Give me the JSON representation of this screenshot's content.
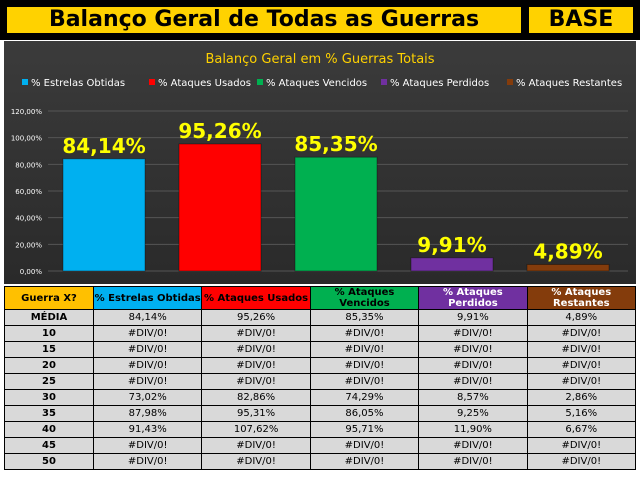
{
  "header": {
    "title": "Balanço Geral de Todas as Guerras",
    "badge": "BASE"
  },
  "colors": {
    "estrelas": "#00b0f0",
    "usados": "#ff0000",
    "vencidos": "#00b050",
    "perdidos": "#7030a0",
    "restantes": "#843c0c",
    "label": "#ffff00"
  },
  "chart_data": {
    "type": "bar",
    "title": "Balanço Geral em % Guerras Totais",
    "legend_position": "top",
    "categories": [
      "% Estrelas Obtidas",
      "% Ataques Usados",
      "% Ataques Vencidos",
      "% Ataques Perdidos",
      "% Ataques Restantes"
    ],
    "values": [
      84.14,
      95.26,
      85.35,
      9.91,
      4.89
    ],
    "value_labels": [
      "84,14%",
      "95,26%",
      "85,35%",
      "9,91%",
      "4,89%"
    ],
    "yticks": [
      "0,00%",
      "20,00%",
      "40,00%",
      "60,00%",
      "80,00%",
      "100,00%",
      "120,00%"
    ],
    "ylim": [
      0,
      120
    ],
    "grid": true
  },
  "table": {
    "headers": [
      "Guerra X?",
      "% Estrelas Obtidas",
      "% Ataques Usados",
      "% Ataques Vencidos",
      "% Ataques Perdidos",
      "% Ataques Restantes"
    ],
    "rows": [
      [
        "MÉDIA",
        "84,14%",
        "95,26%",
        "85,35%",
        "9,91%",
        "4,89%"
      ],
      [
        "10",
        "#DIV/0!",
        "#DIV/0!",
        "#DIV/0!",
        "#DIV/0!",
        "#DIV/0!"
      ],
      [
        "15",
        "#DIV/0!",
        "#DIV/0!",
        "#DIV/0!",
        "#DIV/0!",
        "#DIV/0!"
      ],
      [
        "20",
        "#DIV/0!",
        "#DIV/0!",
        "#DIV/0!",
        "#DIV/0!",
        "#DIV/0!"
      ],
      [
        "25",
        "#DIV/0!",
        "#DIV/0!",
        "#DIV/0!",
        "#DIV/0!",
        "#DIV/0!"
      ],
      [
        "30",
        "73,02%",
        "82,86%",
        "74,29%",
        "8,57%",
        "2,86%"
      ],
      [
        "35",
        "87,98%",
        "95,31%",
        "86,05%",
        "9,25%",
        "5,16%"
      ],
      [
        "40",
        "91,43%",
        "107,62%",
        "95,71%",
        "11,90%",
        "6,67%"
      ],
      [
        "45",
        "#DIV/0!",
        "#DIV/0!",
        "#DIV/0!",
        "#DIV/0!",
        "#DIV/0!"
      ],
      [
        "50",
        "#DIV/0!",
        "#DIV/0!",
        "#DIV/0!",
        "#DIV/0!",
        "#DIV/0!"
      ]
    ]
  }
}
